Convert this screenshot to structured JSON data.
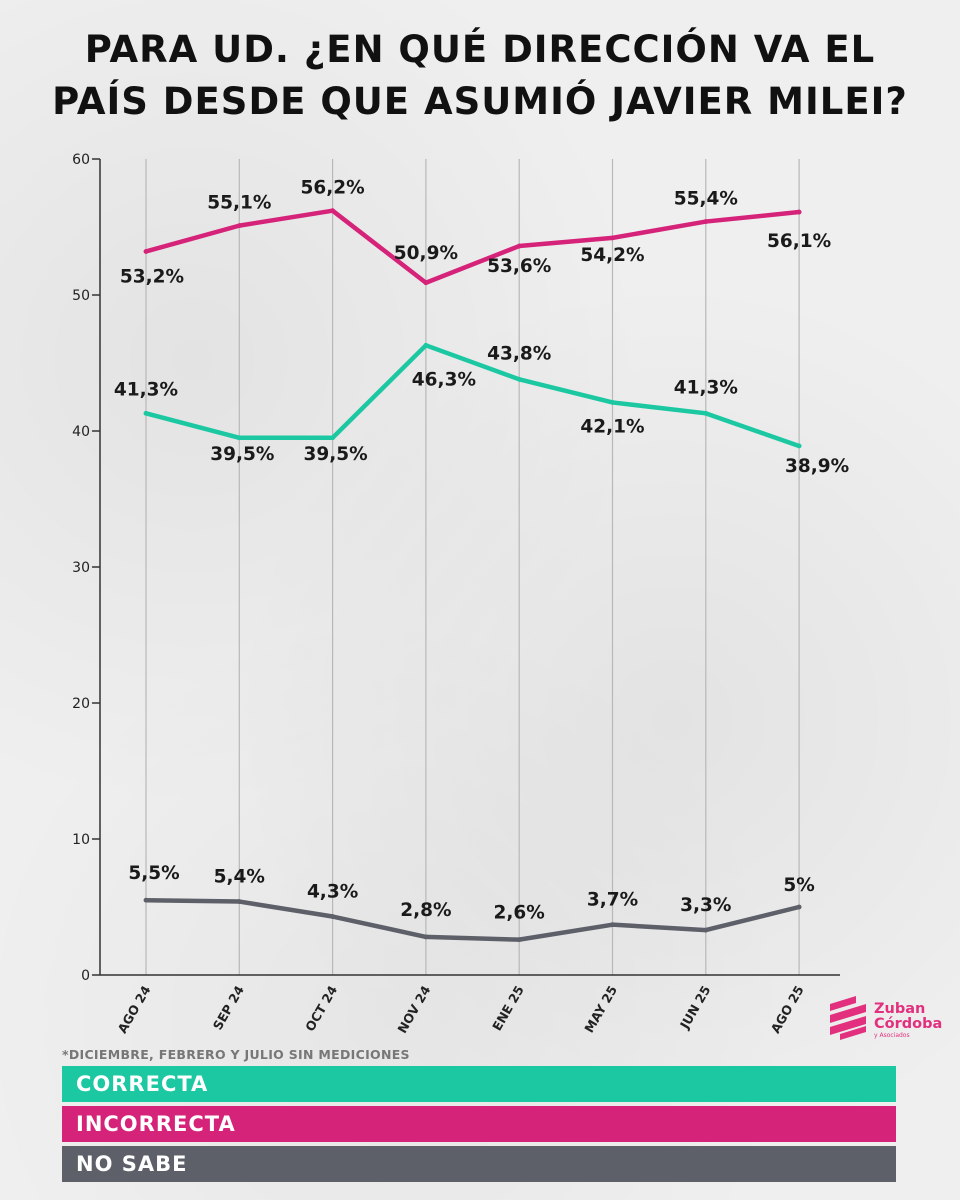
{
  "title_lines": [
    "PARA UD. ¿EN QUÉ DIRECCIÓN VA EL",
    "PAÍS DESDE QUE ASUMIÓ JAVIER MILEI?"
  ],
  "footnote": "*DICIEMBRE, FEBRERO Y JULIO SIN MEDICIONES",
  "legend": [
    {
      "label": "CORRECTA",
      "color": "#1cc8a2"
    },
    {
      "label": "INCORRECTA",
      "color": "#d6237a"
    },
    {
      "label": "NO SABE",
      "color": "#5d6068"
    }
  ],
  "logo": {
    "line1": "Zuban",
    "line2": "Córdoba",
    "line3": "y Asociados",
    "color": "#e2307f"
  },
  "chart_data": {
    "type": "line",
    "title": "PARA UD. ¿EN QUÉ DIRECCIÓN VA EL PAÍS DESDE QUE ASUMIÓ JAVIER MILEI?",
    "categories": [
      "AGO 24",
      "SEP 24",
      "OCT 24",
      "NOV 24",
      "ENE 25",
      "MAY 25",
      "JUN 25",
      "AGO 25"
    ],
    "y_ticks": [
      "0",
      "10",
      "20",
      "30",
      "40",
      "50",
      "60"
    ],
    "ylim": [
      0,
      60
    ],
    "grid": "vertical",
    "series": [
      {
        "name": "CORRECTA",
        "color": "#1cc8a2",
        "values": [
          41.3,
          39.5,
          39.5,
          46.3,
          43.8,
          42.1,
          41.3,
          38.9
        ],
        "labels": [
          "41,3%",
          "39,5%",
          "39,5%",
          "46,3%",
          "43,8%",
          "42,1%",
          "41,3%",
          "38,9%"
        ]
      },
      {
        "name": "INCORRECTA",
        "color": "#d6237a",
        "values": [
          53.2,
          55.1,
          56.2,
          50.9,
          53.6,
          54.2,
          55.4,
          56.1
        ],
        "labels": [
          "53,2%",
          "55,1%",
          "56,2%",
          "50,9%",
          "53,6%",
          "54,2%",
          "55,4%",
          "56,1%"
        ]
      },
      {
        "name": "NO SABE",
        "color": "#5d6068",
        "values": [
          5.5,
          5.4,
          4.3,
          2.8,
          2.6,
          3.7,
          3.3,
          5
        ],
        "labels": [
          "5,5%",
          "5,4%",
          "4,3%",
          "2,8%",
          "2,6%",
          "3,7%",
          "3,3%",
          "5%"
        ]
      }
    ]
  }
}
